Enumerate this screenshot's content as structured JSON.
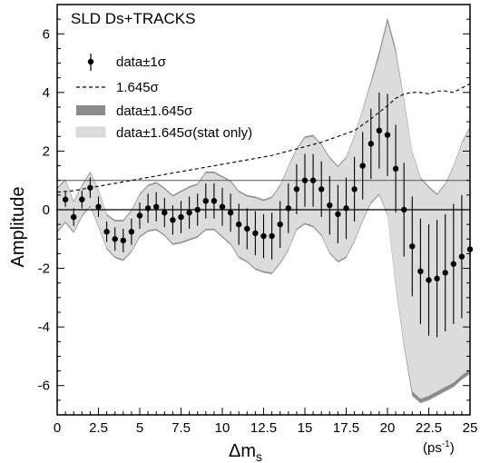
{
  "chart_data": {
    "type": "scatter",
    "title": "SLD Ds+TRACKS",
    "xlabel": "Δm",
    "xlabel_sub": "s",
    "xunit": "(ps",
    "xunit_sup": "-1",
    "xunit_close": ")",
    "ylabel": "Amplitude",
    "xlim": [
      0,
      25
    ],
    "ylim": [
      -7,
      7
    ],
    "x_ticks": [
      0,
      2.5,
      5,
      7.5,
      10,
      12.5,
      15,
      17.5,
      20,
      22.5,
      25
    ],
    "x_tick_labels": [
      "0",
      "2.5",
      "5",
      "7.5",
      "10",
      "12.5",
      "15",
      "17.5",
      "20",
      "22.5",
      "25"
    ],
    "y_ticks": [
      -6,
      -4,
      -2,
      0,
      2,
      4,
      6
    ],
    "y_tick_labels": [
      "-6",
      "-4",
      "-2",
      "0",
      "2",
      "4",
      "6"
    ],
    "reference_lines": [
      0,
      1
    ],
    "legend": {
      "placement": "top-left",
      "entries": [
        {
          "key": "data",
          "label": "data±1σ"
        },
        {
          "key": "sigma",
          "label": "1.645σ"
        },
        {
          "key": "band",
          "label": "data±1.645σ"
        },
        {
          "key": "stat",
          "label": "data±1.645σ(stat only)"
        }
      ]
    },
    "colors": {
      "band": "#8c8c8c",
      "stat_band": "#dcdcdc",
      "points": "#000000",
      "sigma_line": "#000000"
    },
    "series": [
      {
        "name": "data±1σ",
        "x": [
          0.5,
          1,
          1.5,
          2,
          2.5,
          3,
          3.5,
          4,
          4.5,
          5,
          5.5,
          6,
          6.5,
          7,
          7.5,
          8,
          8.5,
          9,
          9.5,
          10,
          10.5,
          11,
          11.5,
          12,
          12.5,
          13,
          13.5,
          14,
          14.5,
          15,
          15.5,
          16,
          16.5,
          17,
          17.5,
          18,
          18.5,
          19,
          19.5,
          20,
          20.5,
          21,
          21.5,
          22,
          22.5,
          23,
          23.5,
          24,
          24.5,
          25
        ],
        "y": [
          0.35,
          -0.25,
          0.35,
          0.75,
          0.1,
          -0.75,
          -1.0,
          -1.05,
          -0.75,
          -0.2,
          0.05,
          0.1,
          -0.1,
          -0.35,
          -0.25,
          -0.1,
          0.0,
          0.3,
          0.3,
          0.1,
          -0.1,
          -0.5,
          -0.65,
          -0.8,
          -0.9,
          -0.9,
          -0.5,
          0.05,
          0.7,
          1.0,
          1.0,
          0.7,
          0.15,
          -0.15,
          0.05,
          0.7,
          1.5,
          2.25,
          2.7,
          2.55,
          1.4,
          0.0,
          -1.25,
          -2.1,
          -2.4,
          -2.35,
          -2.15,
          -1.85,
          -1.6,
          -1.35
        ],
        "err": [
          0.25,
          0.3,
          0.3,
          0.35,
          0.35,
          0.35,
          0.4,
          0.4,
          0.45,
          0.45,
          0.5,
          0.5,
          0.5,
          0.5,
          0.55,
          0.55,
          0.55,
          0.6,
          0.6,
          0.65,
          0.65,
          0.7,
          0.7,
          0.75,
          0.75,
          0.8,
          0.8,
          0.85,
          0.85,
          0.9,
          0.9,
          0.95,
          1.0,
          1.0,
          1.05,
          1.1,
          1.15,
          1.2,
          1.3,
          1.4,
          1.5,
          1.6,
          1.7,
          1.8,
          1.9,
          2.0,
          2.0,
          2.05,
          2.1,
          2.1
        ]
      },
      {
        "name": "1.645σ",
        "x": [
          0,
          1,
          2,
          3,
          4,
          5,
          6,
          7,
          8,
          9,
          10,
          11,
          12,
          13,
          14,
          15,
          16,
          17,
          18,
          19,
          20,
          20.5,
          21,
          21.5,
          22,
          22.5,
          23,
          23.5,
          24,
          24.5,
          25
        ],
        "y": [
          0.6,
          0.65,
          0.75,
          0.85,
          0.95,
          1.05,
          1.15,
          1.25,
          1.35,
          1.45,
          1.55,
          1.65,
          1.75,
          1.85,
          2.0,
          2.15,
          2.3,
          2.5,
          2.7,
          3.1,
          3.55,
          3.8,
          3.95,
          4.0,
          4.0,
          3.95,
          4.05,
          4.05,
          4.0,
          4.15,
          4.3
        ]
      },
      {
        "name": "data±1.645σ",
        "x": [
          0,
          0.5,
          1,
          1.5,
          2,
          2.5,
          3,
          3.5,
          4,
          4.5,
          5,
          5.5,
          6,
          6.5,
          7,
          7.5,
          8,
          8.5,
          9,
          9.5,
          10,
          10.5,
          11,
          11.5,
          12,
          12.5,
          13,
          13.5,
          14,
          14.5,
          15,
          15.5,
          16,
          16.5,
          17,
          17.5,
          18,
          18.5,
          19,
          19.5,
          20,
          20.5,
          21,
          21.5,
          22,
          22.5,
          23,
          23.5,
          24,
          24.5,
          25
        ],
        "upper": [
          0.75,
          1.05,
          0.3,
          0.85,
          1.3,
          0.7,
          -0.15,
          -0.35,
          -0.35,
          0.0,
          0.55,
          0.85,
          0.95,
          0.75,
          0.5,
          0.65,
          0.8,
          0.9,
          1.3,
          1.3,
          1.15,
          1.0,
          0.65,
          0.5,
          0.45,
          0.35,
          0.45,
          0.85,
          1.5,
          2.1,
          2.5,
          2.55,
          2.25,
          1.8,
          1.5,
          1.8,
          2.55,
          3.45,
          4.4,
          5.4,
          6.55,
          5.5,
          3.8,
          2.0,
          1.1,
          0.8,
          0.55,
          0.9,
          1.5,
          2.3,
          2.85
        ],
        "lower": [
          -0.8,
          -0.45,
          -0.8,
          -0.25,
          0.1,
          -0.6,
          -1.35,
          -1.65,
          -1.75,
          -1.45,
          -0.95,
          -0.75,
          -0.7,
          -0.9,
          -1.2,
          -1.15,
          -1.05,
          -0.95,
          -0.7,
          -0.7,
          -0.95,
          -1.2,
          -1.65,
          -1.8,
          -2.05,
          -2.15,
          -2.2,
          -1.85,
          -1.4,
          -0.7,
          -0.5,
          -0.6,
          -0.9,
          -1.5,
          -1.8,
          -1.65,
          -1.1,
          -0.4,
          0.2,
          0.5,
          -0.2,
          -2.65,
          -4.7,
          -6.35,
          -6.6,
          -6.5,
          -6.35,
          -6.2,
          -6.05,
          -5.8,
          -5.6
        ]
      },
      {
        "name": "data±1.645σ(stat only)",
        "x": [
          0,
          0.5,
          1,
          1.5,
          2,
          2.5,
          3,
          3.5,
          4,
          4.5,
          5,
          5.5,
          6,
          6.5,
          7,
          7.5,
          8,
          8.5,
          9,
          9.5,
          10,
          10.5,
          11,
          11.5,
          12,
          12.5,
          13,
          13.5,
          14,
          14.5,
          15,
          15.5,
          16,
          16.5,
          17,
          17.5,
          18,
          18.5,
          19,
          19.5,
          20,
          20.5,
          21,
          21.5,
          22,
          22.5,
          23,
          23.5,
          24,
          24.5,
          25
        ],
        "upper": [
          0.7,
          1.0,
          0.25,
          0.8,
          1.25,
          0.65,
          -0.2,
          -0.4,
          -0.4,
          -0.05,
          0.5,
          0.8,
          0.9,
          0.7,
          0.45,
          0.6,
          0.75,
          0.85,
          1.25,
          1.25,
          1.1,
          0.95,
          0.6,
          0.45,
          0.4,
          0.3,
          0.4,
          0.8,
          1.45,
          2.05,
          2.45,
          2.5,
          2.2,
          1.75,
          1.45,
          1.75,
          2.5,
          3.4,
          4.3,
          5.25,
          6.4,
          5.35,
          3.7,
          1.95,
          1.05,
          0.75,
          0.5,
          0.85,
          1.45,
          2.25,
          2.8
        ],
        "lower": [
          -0.75,
          -0.4,
          -0.75,
          -0.2,
          0.15,
          -0.55,
          -1.3,
          -1.6,
          -1.7,
          -1.4,
          -0.9,
          -0.7,
          -0.65,
          -0.85,
          -1.15,
          -1.1,
          -1.0,
          -0.9,
          -0.65,
          -0.65,
          -0.9,
          -1.15,
          -1.6,
          -1.75,
          -2.0,
          -2.1,
          -2.15,
          -1.8,
          -1.35,
          -0.65,
          -0.45,
          -0.55,
          -0.85,
          -1.45,
          -1.75,
          -1.6,
          -1.05,
          -0.35,
          0.25,
          0.55,
          -0.15,
          -2.55,
          -4.6,
          -6.2,
          -6.45,
          -6.35,
          -6.2,
          -6.05,
          -5.9,
          -5.65,
          -5.45
        ]
      }
    ]
  }
}
